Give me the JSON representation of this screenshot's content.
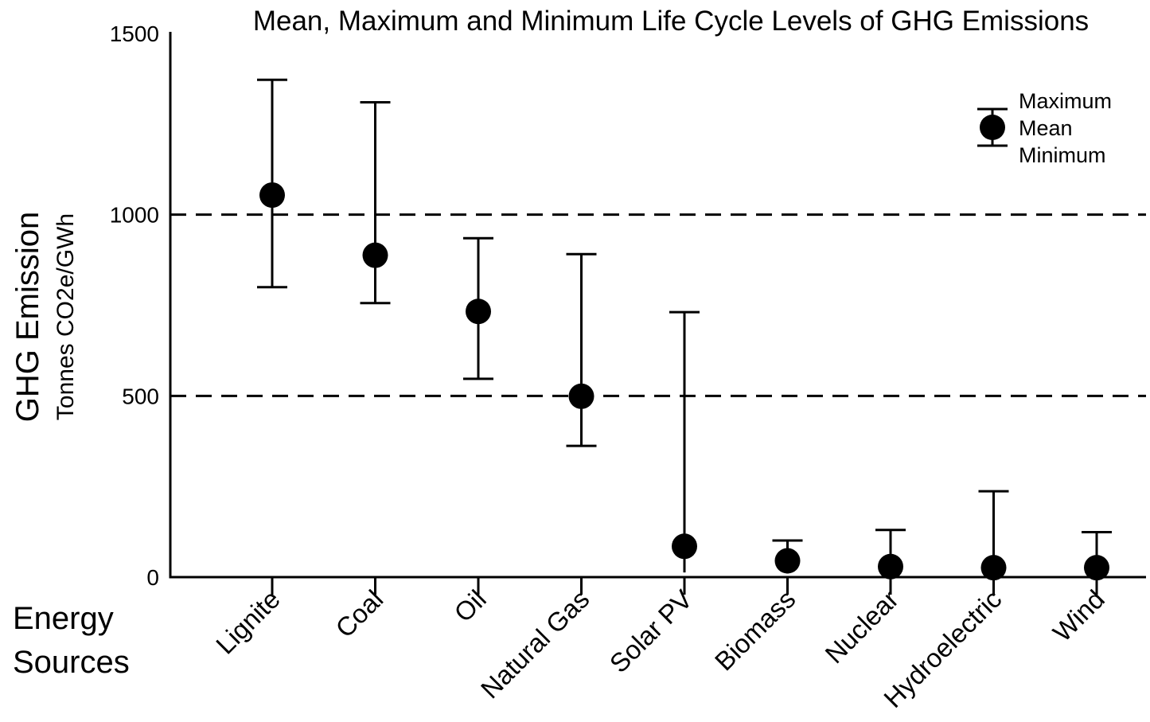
{
  "chart_data": {
    "type": "errorbar",
    "title": "Mean, Maximum and Minimum Life Cycle Levels of GHG Emissions",
    "ylabel": "GHG Emission",
    "ylabel_unit": "Tonnes CO2e/GWh",
    "xlabel_line1": "Energy",
    "xlabel_line2": "Sources",
    "ylim": [
      0,
      1500
    ],
    "yticks": [
      "0",
      "500",
      "1000",
      "1500"
    ],
    "ytick_values": [
      0,
      500,
      1000,
      1500
    ],
    "gridlines_dashed": [
      500,
      1000
    ],
    "categories": [
      "Lignite",
      "Coal",
      "Oil",
      "Natural Gas",
      "Solar PV",
      "Biomass",
      "Nuclear",
      "Hydroelectric",
      "Wind"
    ],
    "mean": [
      1054,
      888,
      733,
      499,
      85,
      45,
      29,
      26,
      26
    ],
    "maximum": [
      1372,
      1310,
      935,
      891,
      731,
      101,
      130,
      237,
      124
    ],
    "minimum": [
      800,
      756,
      547,
      362,
      13,
      10,
      2,
      2,
      2
    ],
    "legend": {
      "position": "top-right",
      "labels": [
        "Maximum",
        "Mean",
        "Minimum"
      ]
    },
    "colors": {
      "marker": "#000000",
      "axis": "#000000"
    }
  }
}
